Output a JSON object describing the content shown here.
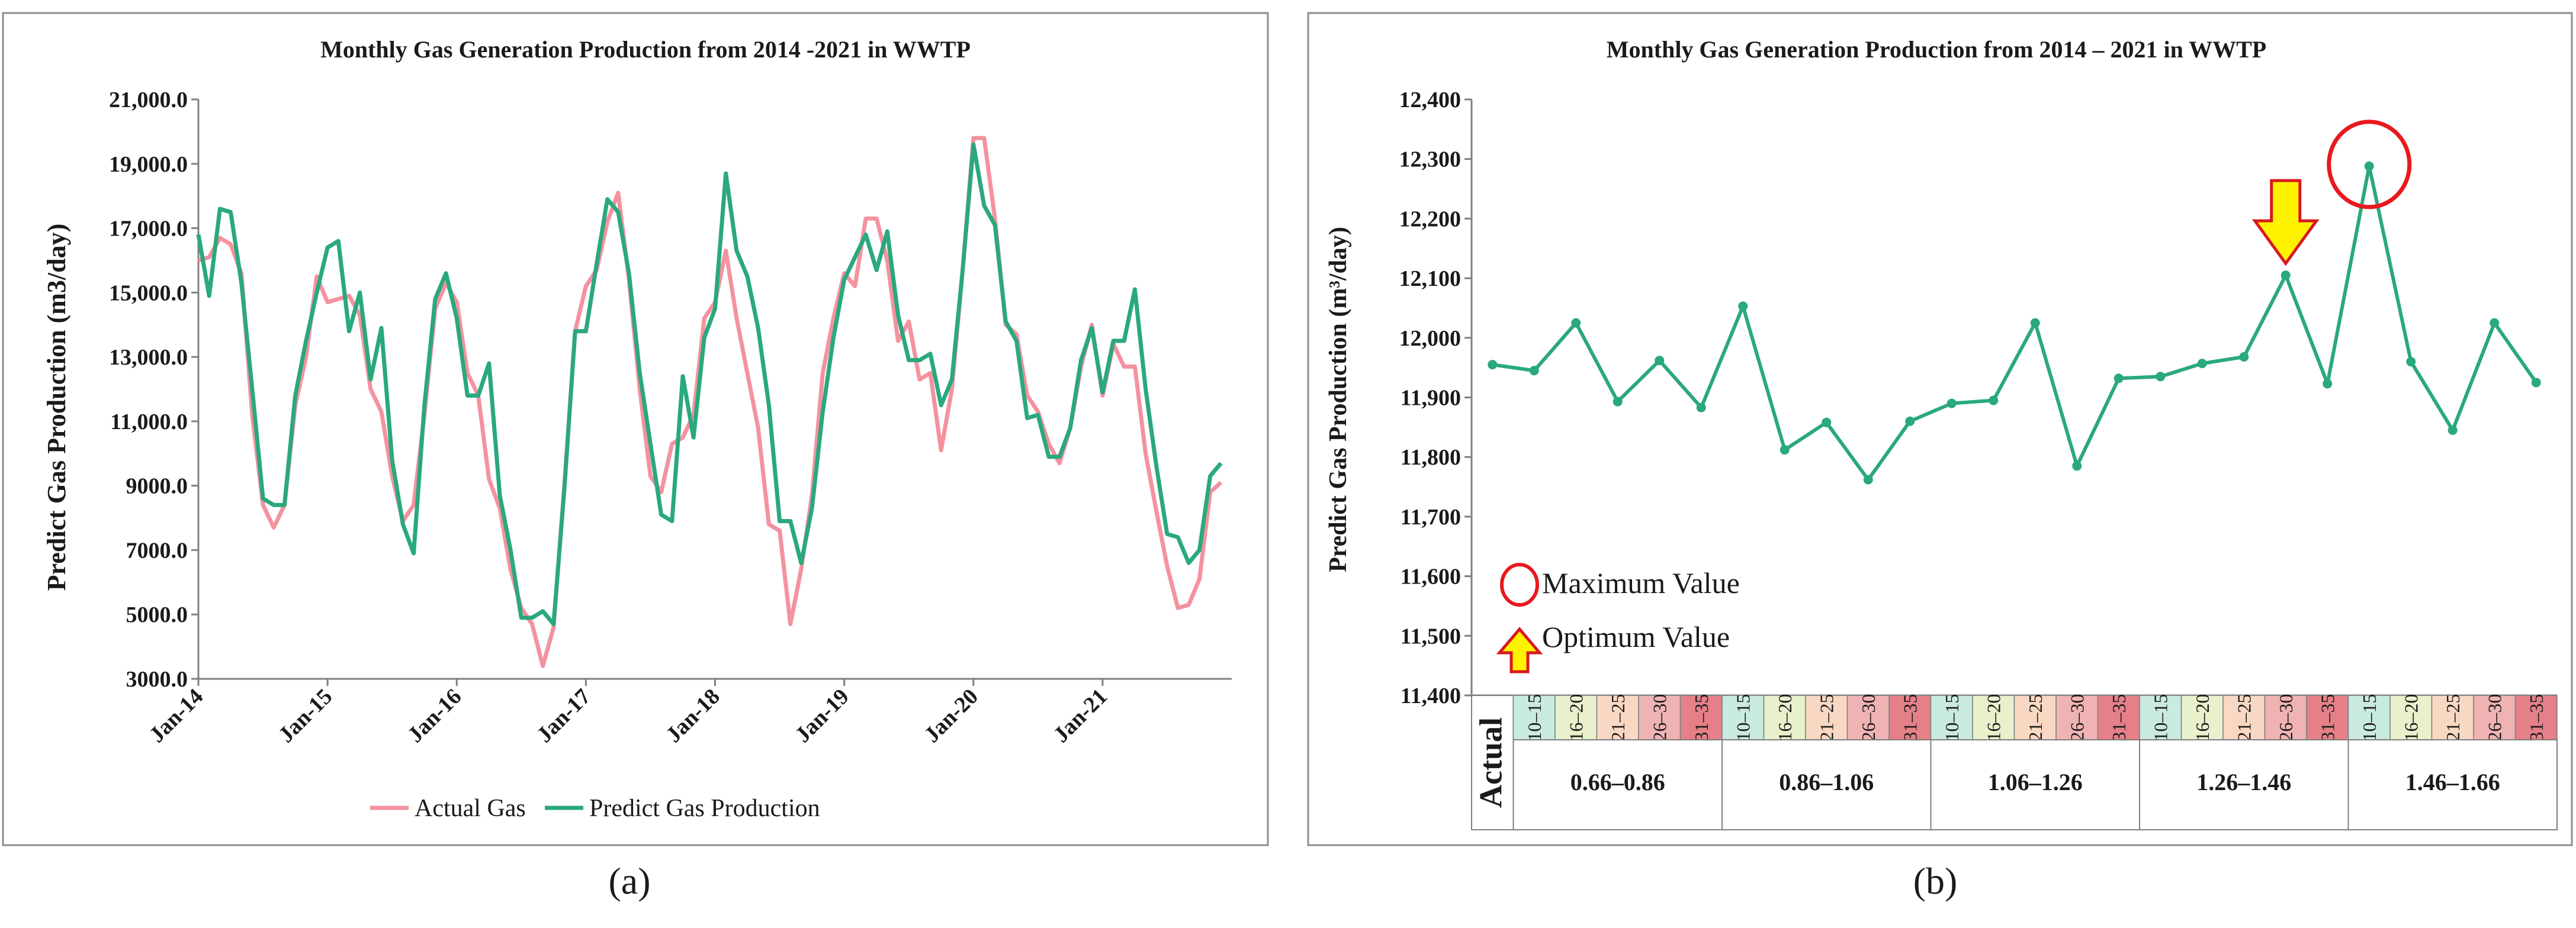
{
  "colors": {
    "actual": "#f4929f",
    "predict": "#2aa87e",
    "frame": "#8c8c8c",
    "text": "#1a1a1a",
    "band10": "#c9ebdf",
    "band16": "#e8f0cc",
    "band21": "#f9d8c3",
    "band26": "#f0b3b4",
    "band31": "#e58088",
    "marker_circle": "#e8191e",
    "arrow_fill": "#fff200",
    "arrow_stroke": "#d8191e"
  },
  "panel_a": {
    "label": "(a)",
    "title": "Monthly Gas Generation Production from 2014 -2021 in WWTP",
    "ylabel": "Predict Gas Production   (m3/day)"
  },
  "panel_b": {
    "label": "(b)",
    "title": "Monthly Gas Generation Production from 2014 – 2021 in WWTP",
    "ylabel": "Predict Gas Production   (m³/day)"
  },
  "chart_data": [
    {
      "type": "line",
      "title": "Monthly Gas Generation Production from 2014 -2021 in WWTP",
      "xlabel": "",
      "ylabel": "Predict Gas Production   (m3/day)",
      "ylim": [
        3000,
        21000
      ],
      "ytick_values": [
        3000,
        5000,
        7000,
        9000,
        11000,
        13000,
        15000,
        17000,
        19000,
        21000
      ],
      "ytick_labels": [
        "3000.0",
        "5000.0",
        "7000.0",
        "9000.0",
        "11,000.0",
        "13,000.0",
        "15,000.0",
        "17,000.0",
        "19,000.0",
        "21,000.0"
      ],
      "xtick_labels": [
        "Jan-14",
        "Jan-15",
        "Jan-16",
        "Jan-17",
        "Jan-18",
        "Jan-19",
        "Jan-20",
        "Jan-21"
      ],
      "n_months": 96,
      "grid": false,
      "legend_position": "bottom",
      "series": [
        {
          "name": "Actual Gas",
          "values": [
            16000,
            16100,
            16700,
            16500,
            15600,
            11200,
            8400,
            7700,
            8400,
            11500,
            13000,
            15500,
            14700,
            14800,
            14900,
            14300,
            12000,
            11300,
            9300,
            7900,
            8400,
            11200,
            14500,
            15300,
            14700,
            12500,
            11800,
            9200,
            8300,
            6400,
            5200,
            4700,
            3400,
            4600,
            9000,
            13800,
            15200,
            15700,
            17200,
            18100,
            15400,
            12000,
            9300,
            8800,
            10300,
            10500,
            11200,
            14200,
            14700,
            16300,
            14200,
            12500,
            10800,
            7800,
            7600,
            4700,
            6400,
            8700,
            12500,
            14200,
            15600,
            15200,
            17300,
            17300,
            16000,
            13500,
            14100,
            12300,
            12500,
            10100,
            12000,
            15700,
            19800,
            19800,
            17300,
            14000,
            13700,
            11800,
            11300,
            10300,
            9700,
            10800,
            12700,
            14000,
            11800,
            13400,
            12700,
            12700,
            10000,
            8200,
            6500,
            5200,
            5300,
            6100,
            8800,
            9100
          ]
        },
        {
          "name": "Predict  Gas Production",
          "values": [
            16800,
            14900,
            17600,
            17500,
            15300,
            12000,
            8600,
            8400,
            8400,
            11800,
            13500,
            15000,
            16400,
            16600,
            13800,
            15000,
            12300,
            13900,
            9800,
            7800,
            6900,
            11500,
            14800,
            15600,
            14200,
            11800,
            11800,
            12800,
            8700,
            7000,
            4900,
            4900,
            5100,
            4700,
            8900,
            13800,
            13800,
            15900,
            17900,
            17500,
            15600,
            12500,
            10300,
            8100,
            7900,
            12400,
            10500,
            13600,
            14500,
            18700,
            16300,
            15500,
            13900,
            11500,
            7900,
            7900,
            6600,
            8300,
            11300,
            13600,
            15400,
            16100,
            16800,
            15700,
            16900,
            14300,
            12900,
            12900,
            13100,
            11500,
            12300,
            15700,
            19600,
            17700,
            17100,
            14100,
            13500,
            11100,
            11200,
            9900,
            9900,
            10800,
            12900,
            13900,
            11900,
            13500,
            13500,
            15100,
            12000,
            9600,
            7500,
            7400,
            6600,
            7000,
            9300,
            9700
          ]
        }
      ]
    },
    {
      "type": "line",
      "title": "Monthly Gas Generation Production from 2014 – 2021 in WWTP",
      "xlabel": "",
      "ylabel": "Predict Gas Production   (m³/day)",
      "ylim": [
        11400,
        12400
      ],
      "ytick_values": [
        11400,
        11500,
        11600,
        11700,
        11800,
        11900,
        12000,
        12100,
        12200,
        12300,
        12400
      ],
      "ytick_labels": [
        "11,400",
        "11,500",
        "11,600",
        "11,700",
        "11,800",
        "11,900",
        "12,000",
        "12,100",
        "12,200",
        "12,300",
        "12,400"
      ],
      "grid": false,
      "series": [
        {
          "name": "",
          "values": [
            11955,
            11945,
            12025,
            11893,
            11962,
            11883,
            12053,
            11812,
            11858,
            11762,
            11860,
            11890,
            11895,
            12025,
            11785,
            11932,
            11935,
            11957,
            11968,
            12105,
            11923,
            12288,
            11960,
            11845,
            12025,
            11925
          ]
        }
      ],
      "x_first_label": "Actual",
      "sub_categories": [
        "10–15",
        "16–20",
        "21–25",
        "26–30",
        "31–35"
      ],
      "groups": [
        "0.66–0.86",
        "0.86–1.06",
        "1.06–1.26",
        "1.26–1.46",
        "1.46–1.66"
      ],
      "legend": {
        "maximum": "Maximum Value",
        "optimum": "Optimum Value"
      },
      "annotations": {
        "maximum_index": 21,
        "optimum_index": 19
      }
    }
  ]
}
